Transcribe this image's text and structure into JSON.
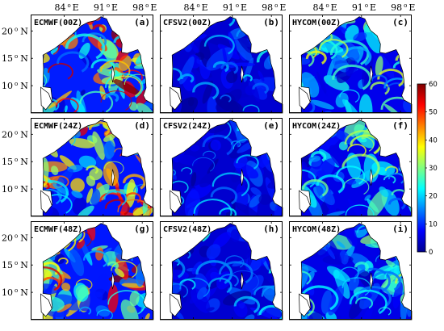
{
  "map": {
    "top_lon_labels": [
      {
        "lon": 84,
        "text": "84",
        "deg": "o",
        "dir": "E"
      },
      {
        "lon": 91,
        "text": "91",
        "deg": "o",
        "dir": "E"
      },
      {
        "lon": 98,
        "text": "98",
        "deg": "o",
        "dir": "E"
      }
    ],
    "lat_labels": [
      {
        "lat": 20,
        "text": "20",
        "deg": "o",
        "dir": "N"
      },
      {
        "lat": 15,
        "text": "15",
        "deg": "o",
        "dir": "N"
      },
      {
        "lat": 10,
        "text": "10",
        "deg": "o",
        "dir": "N"
      }
    ],
    "lon_range": [
      78,
      100
    ],
    "lat_range": [
      5,
      23
    ]
  },
  "rows": [
    {
      "panels": [
        {
          "model": "ECMWF(00Z)",
          "letter": "(a)",
          "intensity": 0.85
        },
        {
          "model": "CFSV2(00Z)",
          "letter": "(b)",
          "intensity": 0.2
        },
        {
          "model": "HYCOM(00Z)",
          "letter": "(c)",
          "intensity": 0.45
        }
      ]
    },
    {
      "panels": [
        {
          "model": "ECMWF(24Z)",
          "letter": "(d)",
          "intensity": 0.78
        },
        {
          "model": "CFSV2(24Z)",
          "letter": "(e)",
          "intensity": 0.18
        },
        {
          "model": "HYCOM(24Z)",
          "letter": "(f)",
          "intensity": 0.42
        }
      ]
    },
    {
      "panels": [
        {
          "model": "ECMWF(48Z)",
          "letter": "(g)",
          "intensity": 0.8
        },
        {
          "model": "CFSV2(48Z)",
          "letter": "(h)",
          "intensity": 0.2
        },
        {
          "model": "HYCOM(48Z)",
          "letter": "(i)",
          "intensity": 0.4
        }
      ]
    }
  ],
  "colorbar": {
    "ticks": [
      "0",
      "10",
      "20",
      "30",
      "40",
      "50",
      "60"
    ],
    "min": 0,
    "max": 60,
    "colors": [
      "#00008f",
      "#0000ff",
      "#0080ff",
      "#00ffff",
      "#80ff80",
      "#ffff00",
      "#ff8000",
      "#ff0000",
      "#800000"
    ]
  }
}
